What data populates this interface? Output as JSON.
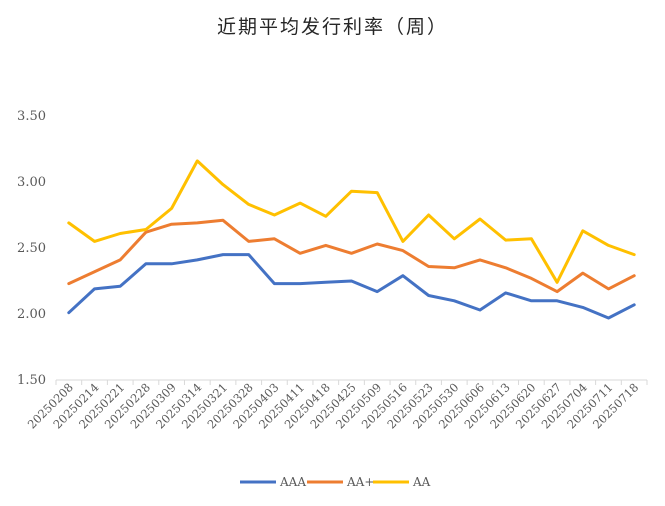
{
  "chart_data": {
    "type": "line",
    "title": "近期平均发行利率（周）",
    "xlabel": "",
    "ylabel": "",
    "ylim": [
      1.5,
      3.5
    ],
    "yticks": [
      "1.50",
      "2.00",
      "2.50",
      "3.00",
      "3.50"
    ],
    "grid": false,
    "legend_position": "bottom",
    "categories": [
      "20250208",
      "20250214",
      "20250221",
      "20250228",
      "20250309",
      "20250314",
      "20250321",
      "20250328",
      "20250403",
      "20250411",
      "20250418",
      "20250425",
      "20250509",
      "20250516",
      "20250523",
      "20250530",
      "20250606",
      "20250613",
      "20250620",
      "20250627",
      "20250704",
      "20250711",
      "20250718"
    ],
    "series": [
      {
        "name": "AAA",
        "color": "#4472C4",
        "values": [
          2.01,
          2.19,
          2.21,
          2.38,
          2.38,
          2.41,
          2.45,
          2.45,
          2.23,
          2.23,
          2.24,
          2.25,
          2.17,
          2.29,
          2.14,
          2.1,
          2.03,
          2.16,
          2.1,
          2.1,
          2.05,
          1.97,
          2.07
        ]
      },
      {
        "name": "AA+",
        "color": "#ED7D31",
        "values": [
          2.23,
          2.32,
          2.41,
          2.62,
          2.68,
          2.69,
          2.71,
          2.55,
          2.57,
          2.46,
          2.52,
          2.46,
          2.53,
          2.48,
          2.36,
          2.35,
          2.41,
          2.35,
          2.27,
          2.17,
          2.31,
          2.19,
          2.29
        ]
      },
      {
        "name": "AA",
        "color": "#FFC000",
        "values": [
          2.69,
          2.55,
          2.61,
          2.64,
          2.8,
          3.16,
          2.98,
          2.83,
          2.75,
          2.84,
          2.74,
          2.93,
          2.92,
          2.55,
          2.75,
          2.57,
          2.72,
          2.56,
          2.57,
          2.24,
          2.63,
          2.52,
          2.45
        ]
      }
    ]
  }
}
